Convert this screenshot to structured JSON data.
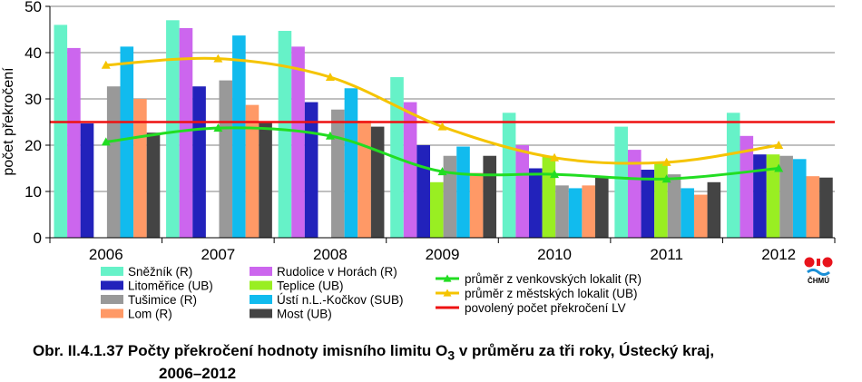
{
  "chart_data": {
    "type": "bar",
    "ylabel": "počet překročení",
    "ylim": [
      0,
      50
    ],
    "yticks": [
      0,
      10,
      20,
      30,
      40,
      50
    ],
    "grid": true,
    "legend_position": "bottom",
    "categories": [
      "2006",
      "2007",
      "2008",
      "2009",
      "2010",
      "2011",
      "2012"
    ],
    "bar_series": [
      {
        "name": "Sněžník (R)",
        "color": "#66f2c8",
        "values": [
          46,
          47,
          44.7,
          34.7,
          27,
          24,
          27
        ]
      },
      {
        "name": "Rudolice v Horách (R)",
        "color": "#cc66ee",
        "values": [
          41,
          45.3,
          41.3,
          29.3,
          20,
          19,
          22
        ]
      },
      {
        "name": "Litoměřice (UB)",
        "color": "#2222bb",
        "values": [
          24.7,
          32.7,
          29.3,
          20,
          15,
          14.7,
          18
        ]
      },
      {
        "name": "Teplice (UB)",
        "color": "#99ee22",
        "values": [
          null,
          null,
          null,
          12,
          17.7,
          16.3,
          18
        ]
      },
      {
        "name": "Tušimice (R)",
        "color": "#999999",
        "values": [
          32.7,
          34,
          27.7,
          17.7,
          11.3,
          13.7,
          17.7
        ]
      },
      {
        "name": "Ústí n.L.-Kočkov (SUB)",
        "color": "#11bbee",
        "values": [
          41.3,
          43.7,
          32.3,
          19.7,
          10.7,
          10.7,
          17
        ]
      },
      {
        "name": "Lom (R)",
        "color": "#ff9966",
        "values": [
          30,
          28.7,
          25.3,
          14,
          11.3,
          9.3,
          13.3
        ]
      },
      {
        "name": "Most (UB)",
        "color": "#444444",
        "values": [
          22.7,
          25,
          24,
          17.7,
          13,
          12,
          13
        ]
      }
    ],
    "line_series": [
      {
        "name": "průměr z venkovských lokalit (R)",
        "color": "#22dd22",
        "values": [
          20.7,
          23.7,
          22,
          14.3,
          13.7,
          12.7,
          15
        ]
      },
      {
        "name": "průměr z městských lokalit (UB)",
        "color": "#f5c400",
        "values": [
          37.3,
          38.7,
          34.7,
          24,
          17.3,
          16.3,
          20
        ]
      }
    ],
    "threshold": {
      "name": "povolený počet překročení LV",
      "value": 25,
      "color": "#ee1111"
    }
  },
  "logo": {
    "text": "ČHMÚ"
  },
  "caption": {
    "prefix": "Obr. II.4.1.37  Počty překročení hodnoty imisního limitu O",
    "subscript": "3",
    "suffix": " v průměru za tři roky, Ústecký kraj,",
    "line2": "2006–2012"
  }
}
